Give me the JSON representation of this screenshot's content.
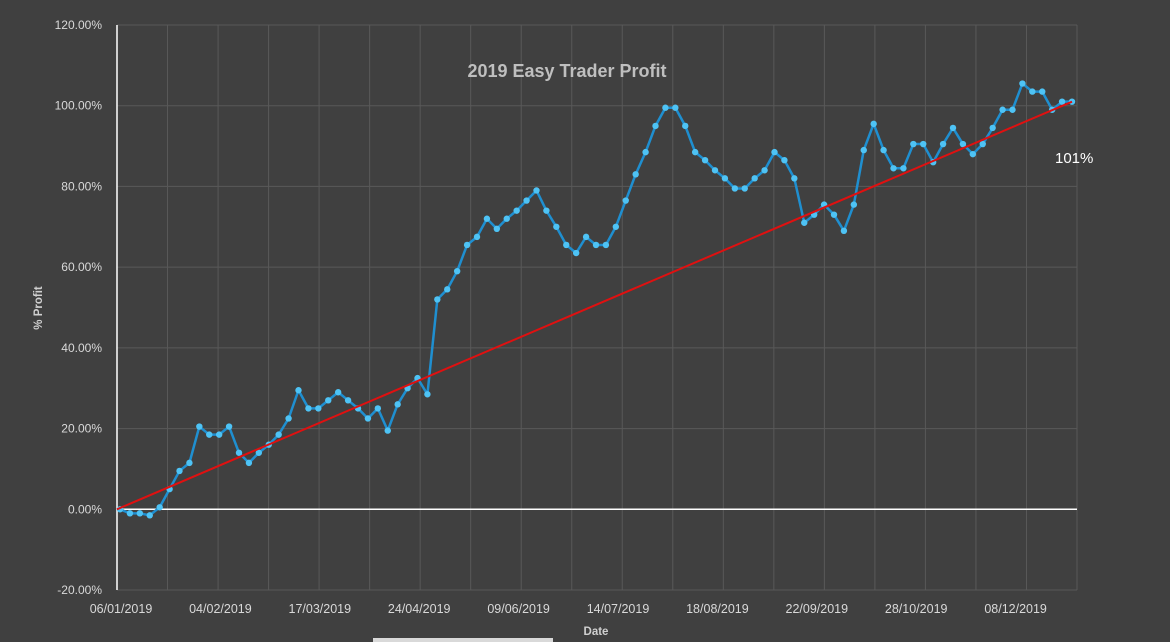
{
  "chart_data": {
    "type": "line",
    "title": "2019 Easy Trader Profit",
    "xlabel": "Date",
    "ylabel": "% Profit",
    "ylim": [
      -20,
      120
    ],
    "y_ticks": [
      -20,
      0,
      20,
      40,
      60,
      80,
      100,
      120
    ],
    "y_tick_labels": [
      "-20.00%",
      "0.00%",
      "20.00%",
      "40.00%",
      "60.00%",
      "80.00%",
      "100.00%",
      "120.00%"
    ],
    "x_tick_labels": [
      "06/01/2019",
      "04/02/2019",
      "17/03/2019",
      "24/04/2019",
      "09/06/2019",
      "14/07/2019",
      "18/08/2019",
      "22/09/2019",
      "28/10/2019",
      "08/12/2019"
    ],
    "grid": true,
    "annotation": "101%",
    "colors": {
      "background": "#404040",
      "series": "#1f8fd0",
      "marker": "#4ec3f5",
      "trendline": "#e01010",
      "zero_line": "#ffffff",
      "gridline": "#595959"
    },
    "series": [
      {
        "values": [
          0,
          -1,
          -1,
          -1.5,
          0.5,
          5,
          9.5,
          11.5,
          20.5,
          18.5,
          18.5,
          20.5,
          14,
          11.5,
          14,
          16,
          18.5,
          22.5,
          29.5,
          25,
          25,
          27,
          29,
          27,
          25,
          22.5,
          25,
          19.5,
          26,
          30,
          32.5,
          28.5,
          52,
          54.5,
          59,
          65.5,
          67.5,
          72,
          69.5,
          72,
          74,
          76.5,
          79,
          74,
          70,
          65.5,
          63.5,
          67.5,
          65.5,
          65.5,
          70,
          76.5,
          83,
          88.5,
          95,
          99.5,
          99.5,
          95,
          88.5,
          86.5,
          84,
          82,
          79.5,
          79.5,
          82,
          84,
          88.5,
          86.5,
          82,
          71,
          73,
          75.5,
          73,
          69,
          75.5,
          89,
          95.5,
          89,
          84.5,
          84.5,
          90.5,
          90.5,
          86,
          90.5,
          94.5,
          90.5,
          88,
          90.5,
          94.5,
          99,
          99,
          105.5,
          103.5,
          103.5,
          99,
          101,
          101
        ]
      },
      {
        "type": "trendline",
        "values": [
          0,
          101
        ]
      }
    ]
  }
}
